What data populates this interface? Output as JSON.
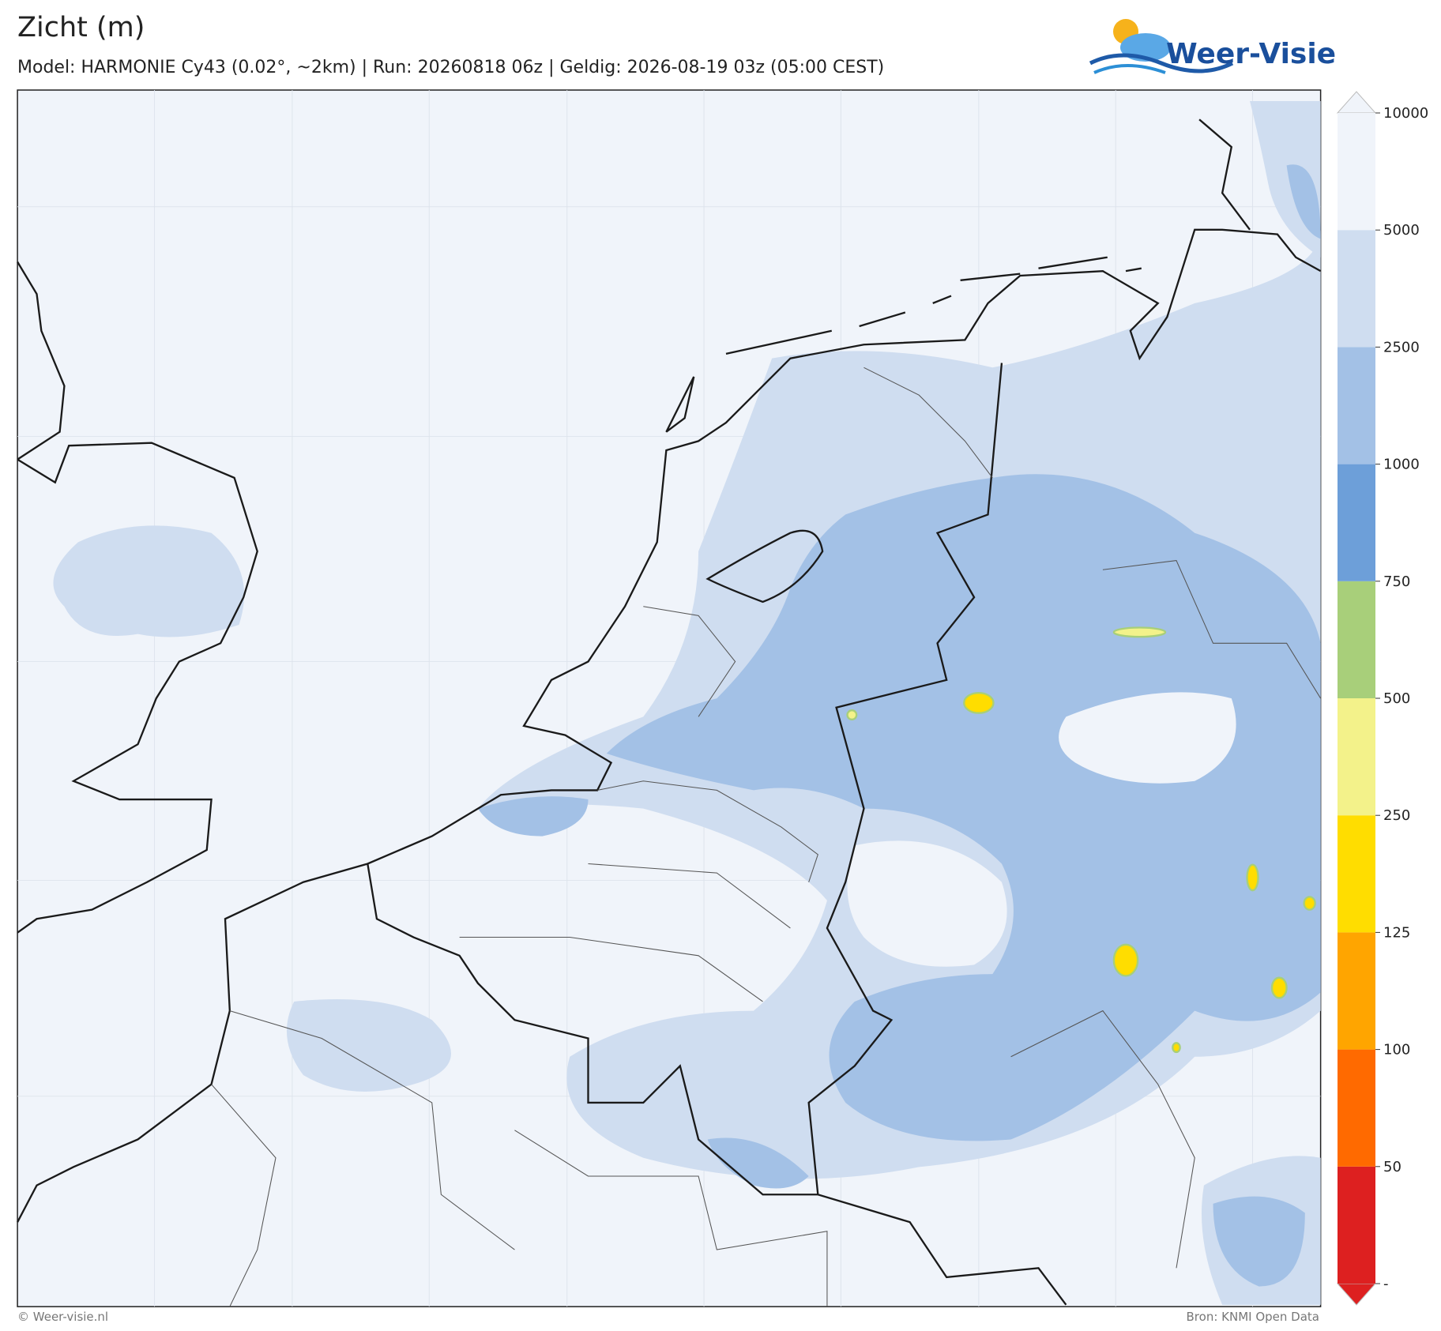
{
  "header": {
    "title": "Zicht (m)",
    "subtitle": "Model: HARMONIE Cy43 (0.02°, ~2km)  |  Run: 20260818 06z  |  Geldig: 2026-08-19 03z (05:00 CEST)"
  },
  "logo": {
    "text": "Weer-Visie"
  },
  "colorbar": {
    "ticks": [
      {
        "value": 0,
        "label": "-"
      },
      50,
      100,
      125,
      250,
      500,
      750,
      1000,
      2500,
      5000,
      10000
    ],
    "colors": [
      "#dd2020",
      "#ff6a00",
      "#ffa500",
      "#ffdd00",
      "#f3f28a",
      "#a8cf7a",
      "#6d9fd9",
      "#a3c1e6",
      "#cfddf0",
      "#f0f4fa"
    ]
  },
  "footer": {
    "left": "© Weer-visie.nl",
    "right": "Bron: KNMI Open Data"
  }
}
